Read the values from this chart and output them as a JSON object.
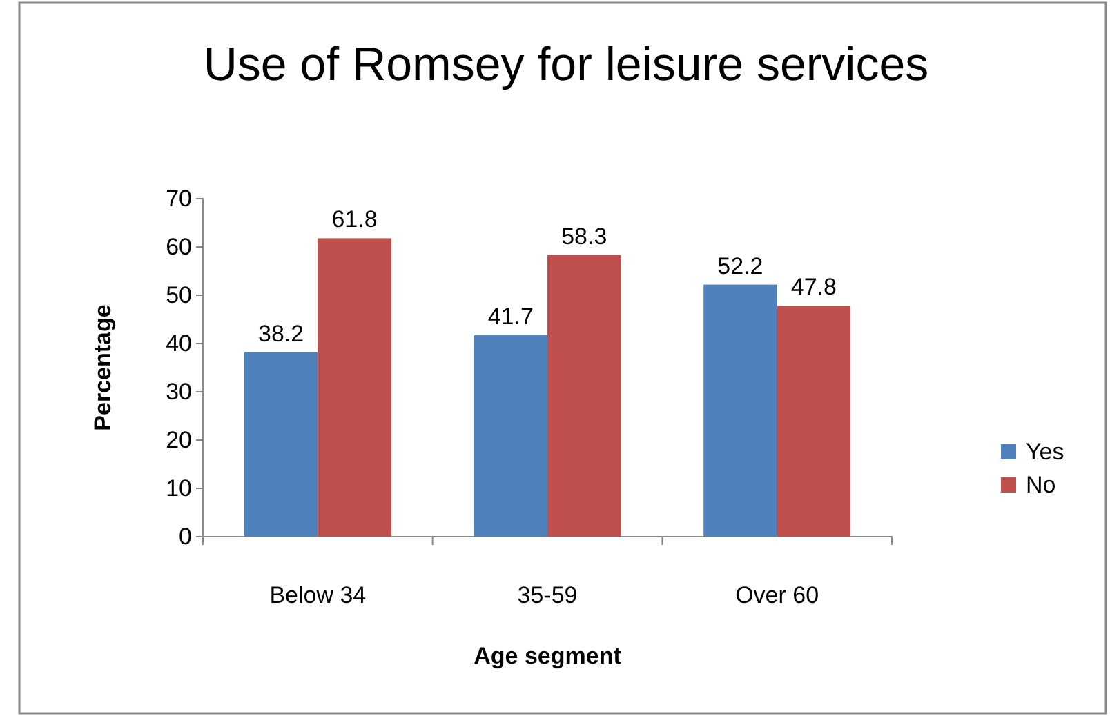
{
  "chart_data": {
    "type": "bar",
    "title": "Use of Romsey for leisure services",
    "xlabel": "Age segment",
    "ylabel": "Percentage",
    "categories": [
      "Below 34",
      "35-59",
      "Over 60"
    ],
    "series": [
      {
        "name": "Yes",
        "color": "#4f81bd",
        "values": [
          38.2,
          41.7,
          52.2
        ]
      },
      {
        "name": "No",
        "color": "#c0504d",
        "values": [
          61.8,
          58.3,
          47.8
        ]
      }
    ],
    "ylim": [
      0,
      70
    ],
    "yticks": [
      0,
      10,
      20,
      30,
      40,
      50,
      60,
      70
    ],
    "data_labels": true,
    "legend": "right",
    "grid": false
  }
}
